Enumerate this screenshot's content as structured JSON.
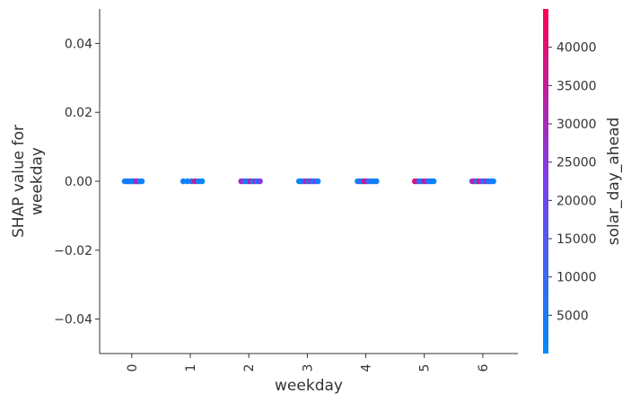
{
  "chart_data": {
    "type": "scatter",
    "xlabel": "weekday",
    "ylabel": "SHAP value for\nweekday",
    "x_ticks": [
      "0",
      "1",
      "2",
      "3",
      "4",
      "5",
      "6"
    ],
    "y_ticks": [
      -0.04,
      -0.02,
      0.0,
      0.02,
      0.04
    ],
    "y_tick_labels": [
      "−0.04",
      "−0.02",
      "0.00",
      "0.02",
      "0.04"
    ],
    "xlim": [
      -0.55,
      6.6
    ],
    "ylim": [
      -0.05,
      0.05
    ],
    "grid": false,
    "colorbar": {
      "label": "solar_day_ahead",
      "range": [
        0,
        45000
      ],
      "ticks": [
        5000,
        10000,
        15000,
        20000,
        25000,
        30000,
        35000,
        40000
      ],
      "tick_labels": [
        "5000",
        "10000",
        "15000",
        "20000",
        "25000",
        "30000",
        "35000",
        "40000"
      ],
      "colors": [
        "#008afb",
        "#7b3ff0",
        "#ff0052"
      ]
    },
    "points": [
      {
        "x": -0.12,
        "y": 0.0,
        "c": 2000
      },
      {
        "x": -0.08,
        "y": 0.0,
        "c": 1500
      },
      {
        "x": -0.05,
        "y": 0.0,
        "c": 8000
      },
      {
        "x": -0.02,
        "y": 0.0,
        "c": 3000
      },
      {
        "x": 0.01,
        "y": 0.0,
        "c": 1200
      },
      {
        "x": 0.04,
        "y": 0.0,
        "c": 6000
      },
      {
        "x": 0.08,
        "y": 0.0,
        "c": 27000
      },
      {
        "x": 0.11,
        "y": 0.0,
        "c": 33000
      },
      {
        "x": 0.14,
        "y": 0.0,
        "c": 2500
      },
      {
        "x": 0.17,
        "y": 0.0,
        "c": 1800
      },
      {
        "x": 0.88,
        "y": 0.0,
        "c": 3000
      },
      {
        "x": 0.95,
        "y": 0.0,
        "c": 1500
      },
      {
        "x": 1.02,
        "y": 0.0,
        "c": 9000
      },
      {
        "x": 1.08,
        "y": 0.0,
        "c": 36000
      },
      {
        "x": 1.14,
        "y": 0.0,
        "c": 2000
      },
      {
        "x": 1.2,
        "y": 0.0,
        "c": 1200
      },
      {
        "x": 1.87,
        "y": 0.0,
        "c": 30000
      },
      {
        "x": 1.91,
        "y": 0.0,
        "c": 25000
      },
      {
        "x": 1.95,
        "y": 0.0,
        "c": 2000
      },
      {
        "x": 1.99,
        "y": 0.0,
        "c": 7000
      },
      {
        "x": 2.03,
        "y": 0.0,
        "c": 38000
      },
      {
        "x": 2.07,
        "y": 0.0,
        "c": 1500
      },
      {
        "x": 2.11,
        "y": 0.0,
        "c": 28000
      },
      {
        "x": 2.15,
        "y": 0.0,
        "c": 3000
      },
      {
        "x": 2.19,
        "y": 0.0,
        "c": 22000
      },
      {
        "x": 2.86,
        "y": 0.0,
        "c": 1500
      },
      {
        "x": 2.9,
        "y": 0.0,
        "c": 2500
      },
      {
        "x": 2.94,
        "y": 0.0,
        "c": 11000
      },
      {
        "x": 2.98,
        "y": 0.0,
        "c": 34000
      },
      {
        "x": 3.02,
        "y": 0.0,
        "c": 4000
      },
      {
        "x": 3.06,
        "y": 0.0,
        "c": 29000
      },
      {
        "x": 3.1,
        "y": 0.0,
        "c": 1800
      },
      {
        "x": 3.14,
        "y": 0.0,
        "c": 24000
      },
      {
        "x": 3.18,
        "y": 0.0,
        "c": 2200
      },
      {
        "x": 3.86,
        "y": 0.0,
        "c": 2000
      },
      {
        "x": 3.9,
        "y": 0.0,
        "c": 12000
      },
      {
        "x": 3.94,
        "y": 0.0,
        "c": 1500
      },
      {
        "x": 3.98,
        "y": 0.0,
        "c": 42000
      },
      {
        "x": 4.02,
        "y": 0.0,
        "c": 26000
      },
      {
        "x": 4.06,
        "y": 0.0,
        "c": 3000
      },
      {
        "x": 4.1,
        "y": 0.0,
        "c": 9000
      },
      {
        "x": 4.14,
        "y": 0.0,
        "c": 1800
      },
      {
        "x": 4.18,
        "y": 0.0,
        "c": 4000
      },
      {
        "x": 4.84,
        "y": 0.0,
        "c": 40000
      },
      {
        "x": 4.88,
        "y": 0.0,
        "c": 32000
      },
      {
        "x": 4.92,
        "y": 0.0,
        "c": 8000
      },
      {
        "x": 4.96,
        "y": 0.0,
        "c": 2000
      },
      {
        "x": 5.0,
        "y": 0.0,
        "c": 37000
      },
      {
        "x": 5.04,
        "y": 0.0,
        "c": 27000
      },
      {
        "x": 5.08,
        "y": 0.0,
        "c": 1500
      },
      {
        "x": 5.12,
        "y": 0.0,
        "c": 5000
      },
      {
        "x": 5.16,
        "y": 0.0,
        "c": 2500
      },
      {
        "x": 5.82,
        "y": 0.0,
        "c": 28000
      },
      {
        "x": 5.86,
        "y": 0.0,
        "c": 33000
      },
      {
        "x": 5.9,
        "y": 0.0,
        "c": 2000
      },
      {
        "x": 5.94,
        "y": 0.0,
        "c": 39000
      },
      {
        "x": 5.98,
        "y": 0.0,
        "c": 24000
      },
      {
        "x": 6.02,
        "y": 0.0,
        "c": 3500
      },
      {
        "x": 6.06,
        "y": 0.0,
        "c": 30000
      },
      {
        "x": 6.1,
        "y": 0.0,
        "c": 1500
      },
      {
        "x": 6.14,
        "y": 0.0,
        "c": 8000
      },
      {
        "x": 6.18,
        "y": 0.0,
        "c": 2200
      }
    ]
  }
}
